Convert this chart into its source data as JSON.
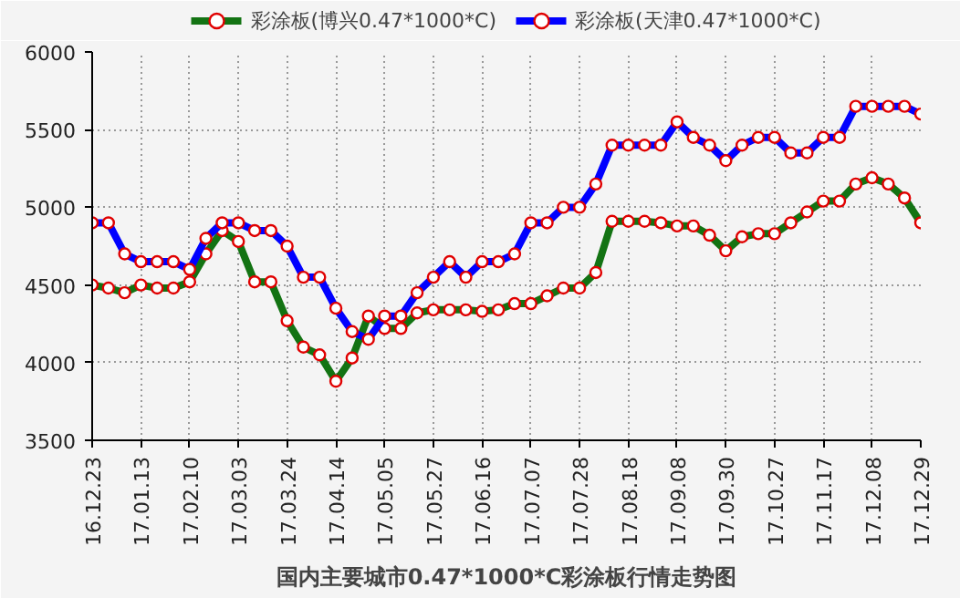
{
  "chart_data": {
    "type": "line",
    "title": "国内主要城市0.47*1000*C彩涂板行情走势图",
    "categories": [
      "16.12.23",
      null,
      null,
      "17.01.13",
      null,
      null,
      "17.02.10",
      null,
      null,
      "17.03.03",
      null,
      null,
      "17.03.24",
      null,
      null,
      "17.04.14",
      null,
      null,
      "17.05.05",
      null,
      null,
      "17.05.27",
      null,
      null,
      "17.06.16",
      null,
      null,
      "17.07.07",
      null,
      null,
      "17.07.28",
      null,
      null,
      "17.08.18",
      null,
      null,
      "17.09.08",
      null,
      null,
      "17.09.30",
      null,
      null,
      "17.10.27",
      null,
      null,
      "17.11.17",
      null,
      null,
      "17.12.08",
      null,
      null,
      "17.12.29"
    ],
    "series": [
      {
        "name": "彩涂板(博兴0.47*1000*C)",
        "color": "#137313",
        "values": [
          4500,
          4480,
          4450,
          4500,
          4480,
          4480,
          4520,
          4700,
          4850,
          4780,
          4520,
          4520,
          4270,
          4100,
          4050,
          3880,
          4030,
          4300,
          4220,
          4220,
          4320,
          4340,
          4340,
          4340,
          4330,
          4340,
          4380,
          4380,
          4430,
          4480,
          4480,
          4580,
          4910,
          4910,
          4910,
          4900,
          4880,
          4880,
          4820,
          4720,
          4810,
          4830,
          4830,
          4900,
          4970,
          5040,
          5040,
          5150,
          5190,
          5150,
          5060,
          4900
        ]
      },
      {
        "name": "彩涂板(天津0.47*1000*C)",
        "color": "#0000ff",
        "values": [
          4900,
          4900,
          4700,
          4650,
          4650,
          4650,
          4600,
          4800,
          4900,
          4900,
          4850,
          4850,
          4750,
          4550,
          4550,
          4350,
          4200,
          4150,
          4300,
          4300,
          4450,
          4550,
          4650,
          4550,
          4650,
          4650,
          4700,
          4900,
          4900,
          5000,
          5000,
          5150,
          5400,
          5400,
          5400,
          5400,
          5550,
          5450,
          5400,
          5300,
          5400,
          5450,
          5450,
          5350,
          5350,
          5450,
          5450,
          5650,
          5650,
          5650,
          5650,
          5600
        ]
      }
    ],
    "ylim": [
      3500,
      6000
    ],
    "yticks": [
      3500,
      4000,
      4500,
      5000,
      5500,
      6000
    ],
    "grid": true,
    "legend": "top",
    "marker": "circle",
    "line_style": "solid"
  }
}
